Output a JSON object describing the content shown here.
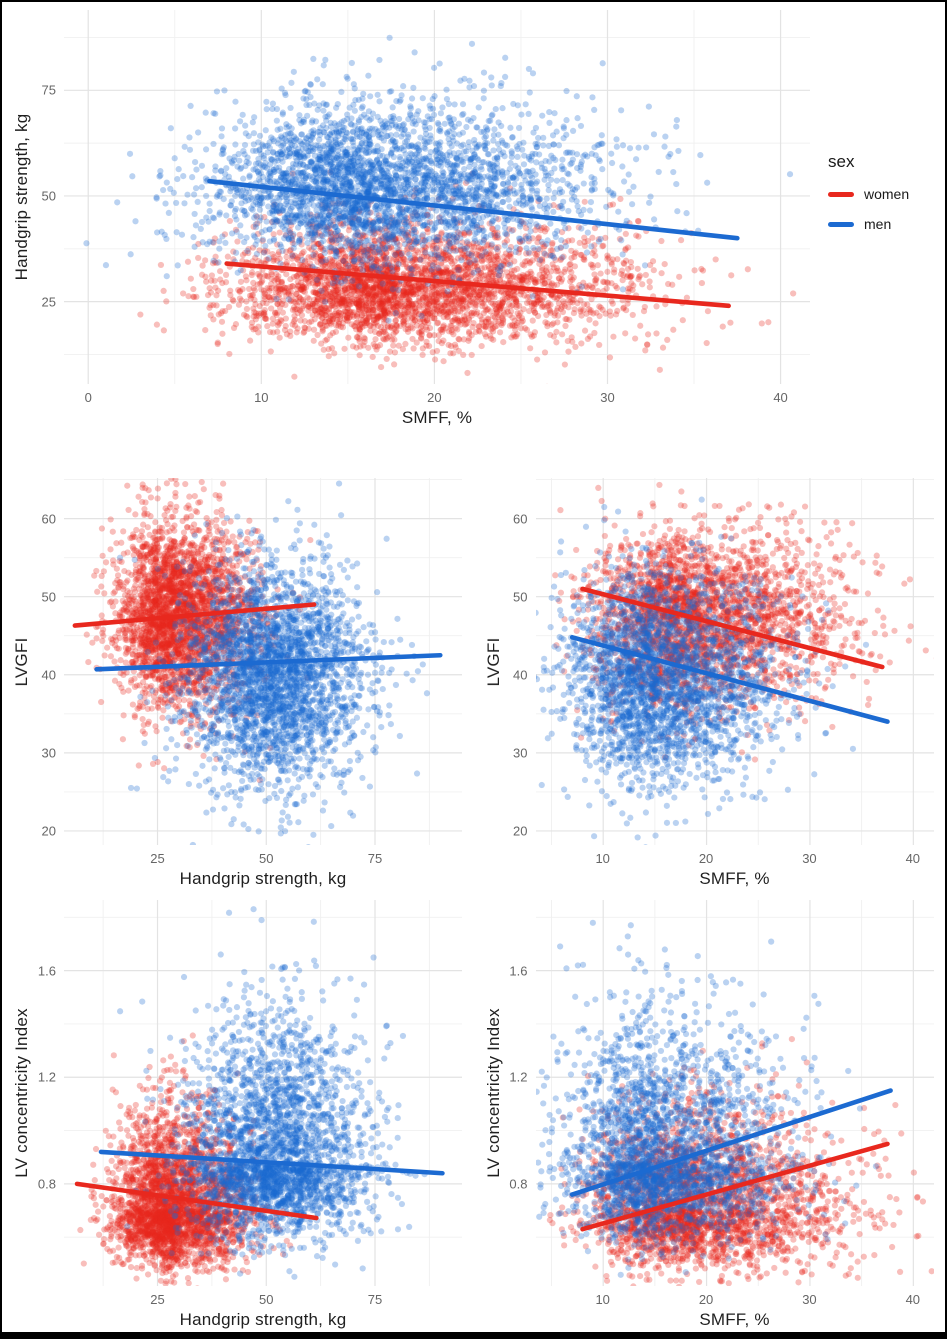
{
  "figure_title": "",
  "legend": {
    "title": "sex",
    "entries": [
      {
        "label": "women",
        "color": "#E8281E"
      },
      {
        "label": "men",
        "color": "#1C6AD1"
      }
    ]
  },
  "colors": {
    "women": "#E8281E",
    "men": "#1C6AD1",
    "grid_major": "#E3E3E3",
    "grid_minor": "#F0F0F0",
    "tick_text": "#666666",
    "axis_title": "#1F1F1F",
    "background": "#FFFFFF",
    "frame": "#000000"
  },
  "chart_data": [
    {
      "id": "handgrip-vs-smff",
      "type": "scatter",
      "xlabel": "SMFF, %",
      "ylabel": "Handgrip strength, kg",
      "xlim": [
        -1.4,
        41.7
      ],
      "ylim": [
        5.5,
        94
      ],
      "xticks": [
        0,
        10,
        20,
        30,
        40
      ],
      "xtick_labels": [
        "0",
        "10",
        "20",
        "30",
        "40"
      ],
      "yticks": [
        25,
        50,
        75
      ],
      "ytick_labels": [
        "25",
        "50",
        "75"
      ],
      "grid": "major+minor",
      "legend_shown": true,
      "point_alpha": 0.3,
      "series": [
        {
          "name": "women",
          "color": "#E8281E",
          "n": 3200,
          "cloud": {
            "cx": 18.0,
            "cy": 28.5,
            "sdx": 4.6,
            "sdy": 6.3,
            "skx": 1.45,
            "sky": 1.25
          },
          "trend": {
            "x1": 8,
            "y1": 34,
            "x2": 37,
            "y2": 24
          }
        },
        {
          "name": "men",
          "color": "#1C6AD1",
          "n": 3200,
          "cloud": {
            "cx": 16.3,
            "cy": 52.0,
            "sdx": 4.4,
            "sdy": 8.6,
            "skx": 1.5,
            "sky": 1.15
          },
          "trend": {
            "x1": 7,
            "y1": 53.5,
            "x2": 37.5,
            "y2": 40
          }
        }
      ]
    },
    {
      "id": "lvgfi-vs-handgrip",
      "type": "scatter",
      "xlabel": "Handgrip strength, kg",
      "ylabel": "LVGFI",
      "xlim": [
        3.5,
        95
      ],
      "ylim": [
        18.2,
        65.2
      ],
      "xticks": [
        25,
        50,
        75
      ],
      "xtick_labels": [
        "25",
        "50",
        "75"
      ],
      "yticks": [
        20,
        30,
        40,
        50,
        60
      ],
      "ytick_labels": [
        "20",
        "30",
        "40",
        "50",
        "60"
      ],
      "grid": "major+minor",
      "legend_shown": false,
      "point_alpha": 0.3,
      "series": [
        {
          "name": "women",
          "color": "#E8281E",
          "n": 2800,
          "cloud": {
            "cx": 29.5,
            "cy": 47.5,
            "sdx": 6.6,
            "sdy": 5.8,
            "skx": 1.35,
            "sky": 1.0
          },
          "trend": {
            "x1": 6,
            "y1": 46.3,
            "x2": 61,
            "y2": 49
          }
        },
        {
          "name": "men",
          "color": "#1C6AD1",
          "n": 2800,
          "cloud": {
            "cx": 52.0,
            "cy": 40.0,
            "sdx": 10.3,
            "sdy": 7.0,
            "skx": 1.0,
            "sky": 1.0
          },
          "trend": {
            "x1": 11,
            "y1": 40.7,
            "x2": 90,
            "y2": 42.5
          }
        }
      ]
    },
    {
      "id": "lvgfi-vs-smff",
      "type": "scatter",
      "xlabel": "SMFF, %",
      "ylabel": "LVGFI",
      "xlim": [
        3.5,
        42
      ],
      "ylim": [
        18.2,
        65.2
      ],
      "xticks": [
        10,
        20,
        30,
        40
      ],
      "xtick_labels": [
        "10",
        "20",
        "30",
        "40"
      ],
      "yticks": [
        20,
        30,
        40,
        50,
        60
      ],
      "ytick_labels": [
        "20",
        "30",
        "40",
        "50",
        "60"
      ],
      "grid": "major+minor",
      "legend_shown": false,
      "point_alpha": 0.3,
      "series": [
        {
          "name": "women",
          "color": "#E8281E",
          "n": 2600,
          "cloud": {
            "cx": 18.8,
            "cy": 47.5,
            "sdx": 4.9,
            "sdy": 5.6,
            "skx": 1.5,
            "sky": 1.0
          },
          "trend": {
            "x1": 8,
            "y1": 51,
            "x2": 37,
            "y2": 41
          }
        },
        {
          "name": "men",
          "color": "#1C6AD1",
          "n": 2600,
          "cloud": {
            "cx": 15.2,
            "cy": 39.5,
            "sdx": 4.2,
            "sdy": 6.6,
            "skx": 1.45,
            "sky": 1.0
          },
          "trend": {
            "x1": 7,
            "y1": 44.8,
            "x2": 37.5,
            "y2": 34
          }
        }
      ]
    },
    {
      "id": "lvci-vs-handgrip",
      "type": "scatter",
      "xlabel": "Handgrip strength, kg",
      "ylabel": "LV concentricity Index",
      "xlim": [
        3.5,
        95
      ],
      "ylim": [
        0.417,
        1.865
      ],
      "xticks": [
        25,
        50,
        75
      ],
      "xtick_labels": [
        "25",
        "50",
        "75"
      ],
      "yticks": [
        0.8,
        1.2,
        1.6
      ],
      "ytick_labels": [
        "0.8",
        "1.2",
        "1.6"
      ],
      "grid": "major+minor",
      "legend_shown": false,
      "point_alpha": 0.3,
      "series": [
        {
          "name": "women",
          "color": "#E8281E",
          "n": 2800,
          "cloud": {
            "cx": 28.5,
            "cy": 0.7,
            "sdx": 6.6,
            "sdy": 0.105,
            "skx": 1.35,
            "sky": 1.8
          },
          "trend": {
            "x1": 6.5,
            "y1": 0.8,
            "x2": 61.5,
            "y2": 0.672
          }
        },
        {
          "name": "men",
          "color": "#1C6AD1",
          "n": 2800,
          "cloud": {
            "cx": 52.0,
            "cy": 0.88,
            "sdx": 10.3,
            "sdy": 0.135,
            "skx": 1.0,
            "sky": 2.1
          },
          "trend": {
            "x1": 12,
            "y1": 0.92,
            "x2": 90.5,
            "y2": 0.84
          }
        }
      ]
    },
    {
      "id": "lvci-vs-smff",
      "type": "scatter",
      "xlabel": "SMFF, %",
      "ylabel": "LV concentricity Index",
      "xlim": [
        3.5,
        42
      ],
      "ylim": [
        0.417,
        1.865
      ],
      "xticks": [
        10,
        20,
        30,
        40
      ],
      "xtick_labels": [
        "10",
        "20",
        "30",
        "40"
      ],
      "yticks": [
        0.8,
        1.2,
        1.6
      ],
      "ytick_labels": [
        "0.8",
        "1.2",
        "1.6"
      ],
      "grid": "major+minor",
      "legend_shown": false,
      "point_alpha": 0.3,
      "series": [
        {
          "name": "women",
          "color": "#E8281E",
          "n": 2600,
          "cloud": {
            "cx": 19.0,
            "cy": 0.7,
            "sdx": 5.0,
            "sdy": 0.105,
            "skx": 1.5,
            "sky": 1.85
          },
          "trend": {
            "x1": 8,
            "y1": 0.63,
            "x2": 37.5,
            "y2": 0.95
          }
        },
        {
          "name": "men",
          "color": "#1C6AD1",
          "n": 2600,
          "cloud": {
            "cx": 15.3,
            "cy": 0.88,
            "sdx": 4.3,
            "sdy": 0.135,
            "skx": 1.45,
            "sky": 2.1
          },
          "trend": {
            "x1": 7,
            "y1": 0.76,
            "x2": 37.8,
            "y2": 1.15
          }
        }
      ]
    }
  ]
}
